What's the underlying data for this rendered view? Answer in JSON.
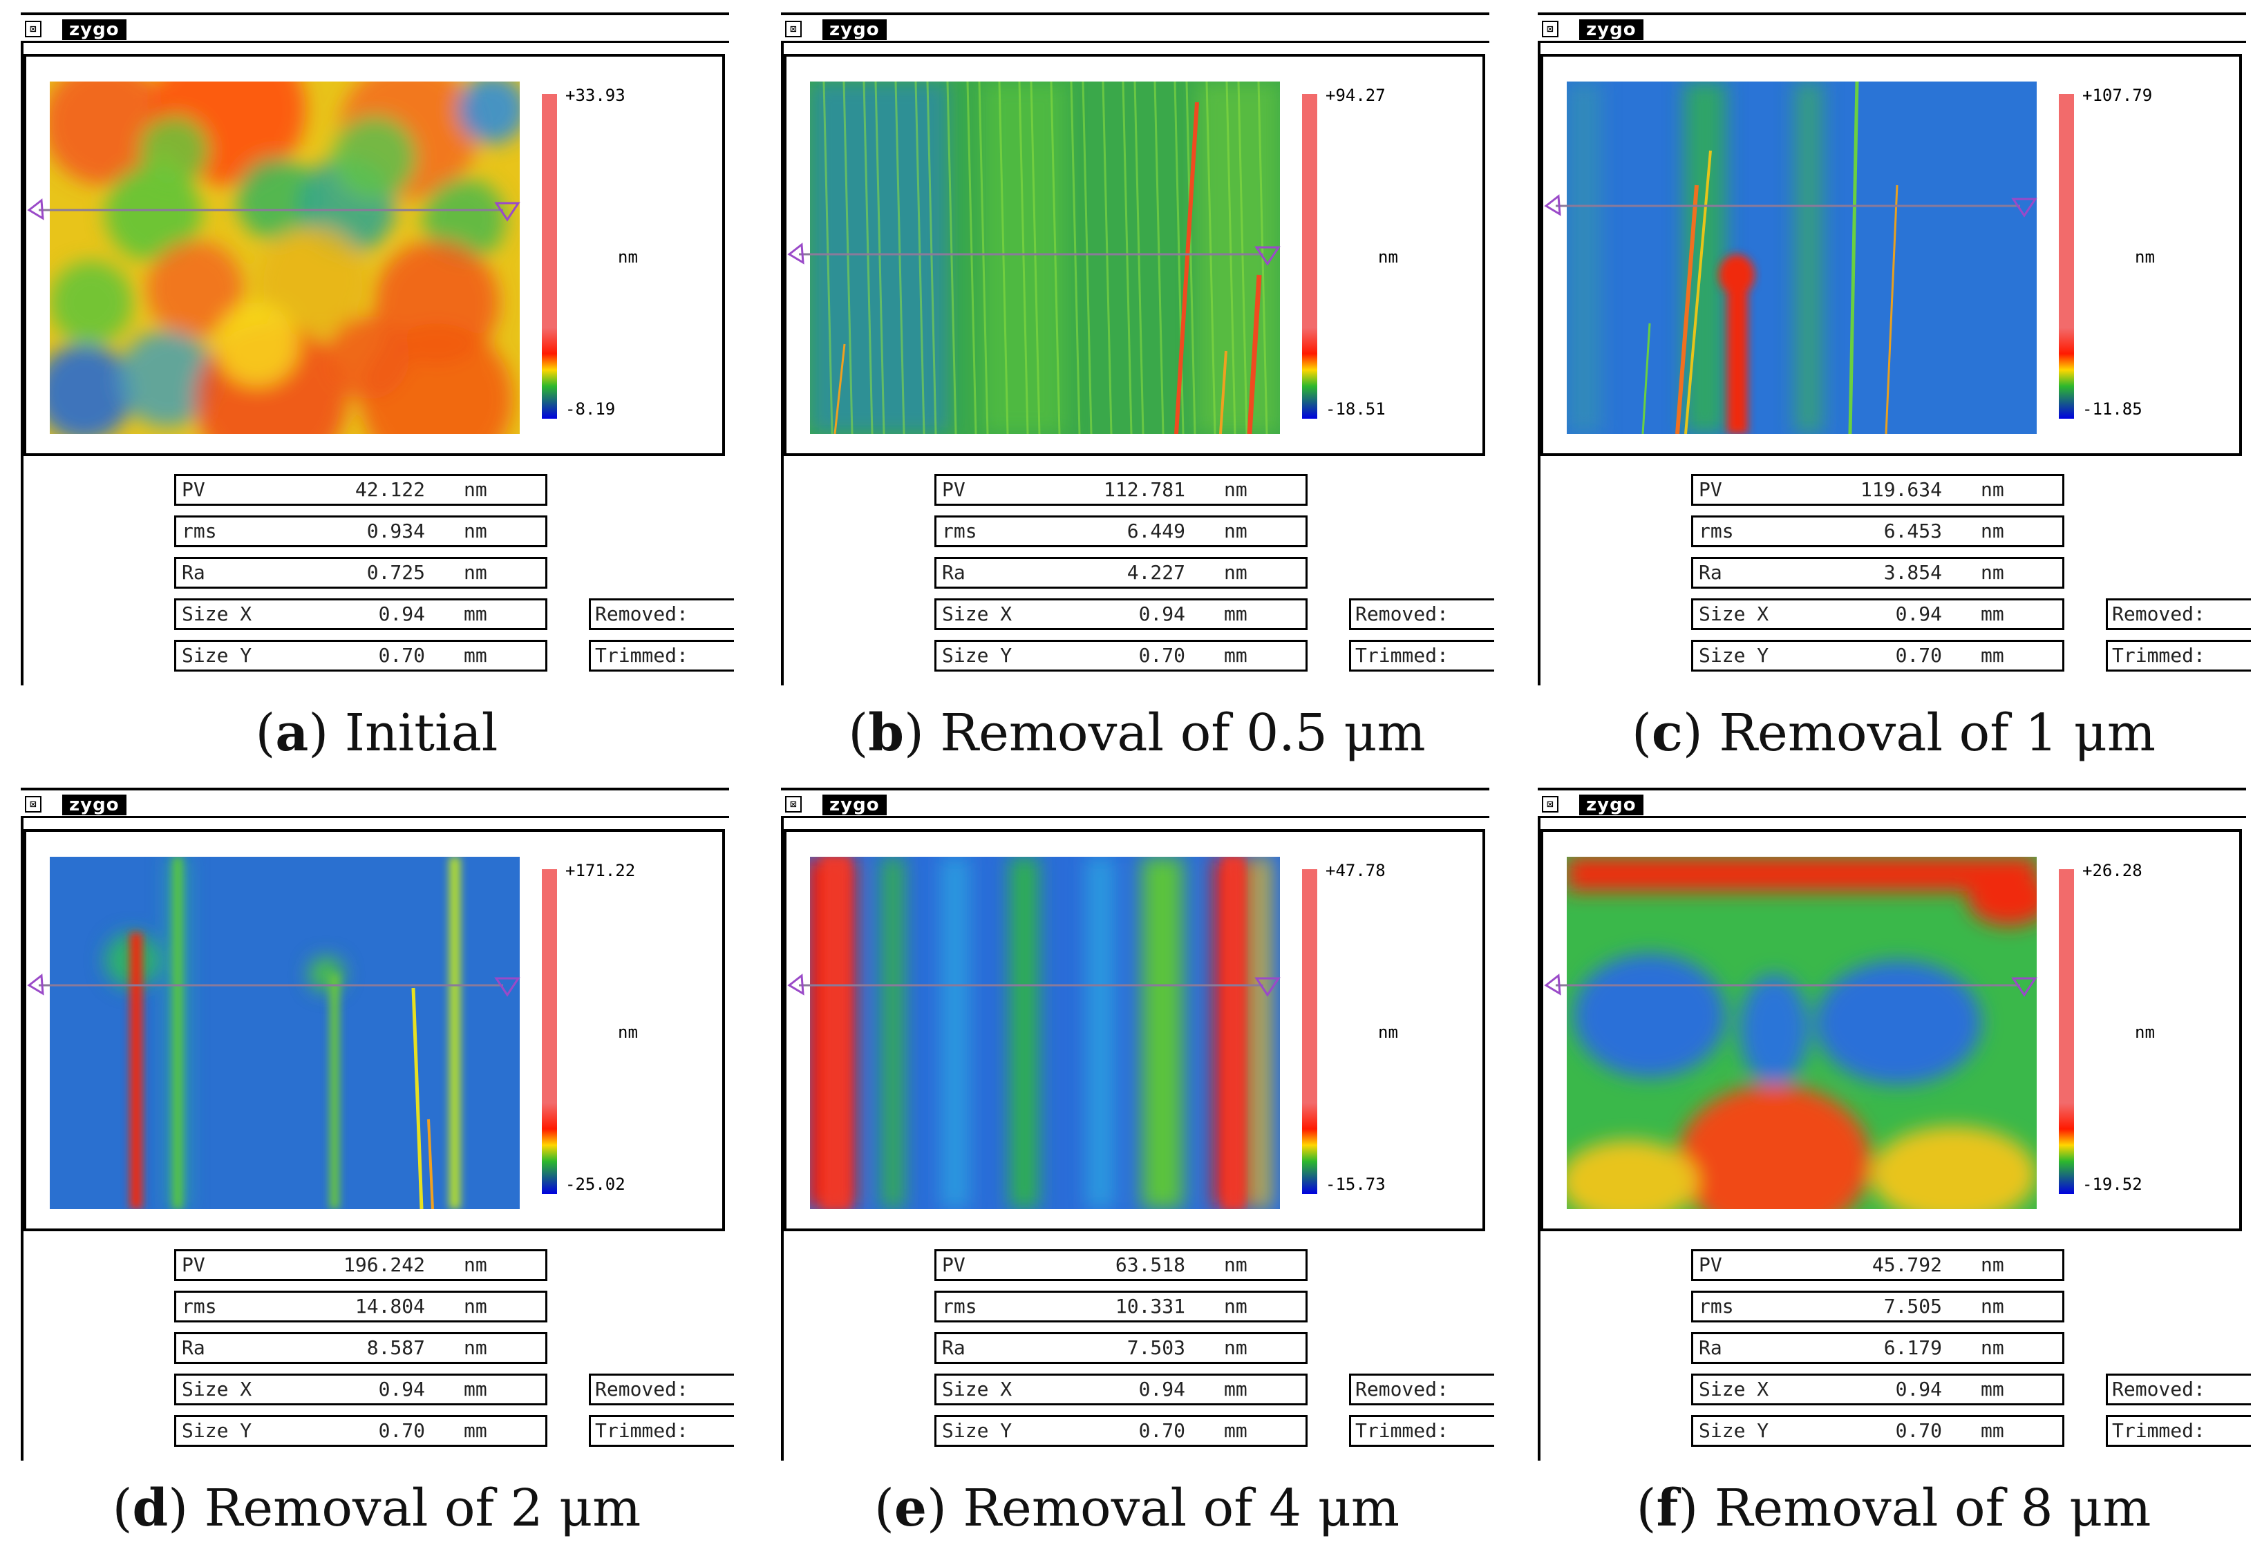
{
  "panels": [
    {
      "logo": "zygo",
      "scale_max": "+33.93",
      "scale_min": "-8.19",
      "unit": "nm",
      "stats": [
        {
          "label": "PV",
          "value": "42.122",
          "unit": "nm"
        },
        {
          "label": "rms",
          "value": "0.934",
          "unit": "nm"
        },
        {
          "label": "Ra",
          "value": "0.725",
          "unit": "nm"
        },
        {
          "label": "Size X",
          "value": "0.94",
          "unit": "mm"
        },
        {
          "label": "Size Y",
          "value": "0.70",
          "unit": "mm"
        }
      ],
      "removed_label": "Removed:",
      "trimmed_label": "Trimmed:",
      "caption_letter": "a",
      "caption_text": " Initial",
      "pattern": "mottled"
    },
    {
      "logo": "zygo",
      "scale_max": "+94.27",
      "scale_min": "-18.51",
      "unit": "nm",
      "stats": [
        {
          "label": "PV",
          "value": "112.781",
          "unit": "nm"
        },
        {
          "label": "rms",
          "value": "6.449",
          "unit": "nm"
        },
        {
          "label": "Ra",
          "value": "4.227",
          "unit": "nm"
        },
        {
          "label": "Size X",
          "value": "0.94",
          "unit": "mm"
        },
        {
          "label": "Size Y",
          "value": "0.70",
          "unit": "mm"
        }
      ],
      "removed_label": "Removed:",
      "trimmed_label": "Trimmed:",
      "caption_letter": "b",
      "caption_text": " Removal of 0.5 μm",
      "pattern": "fine-scratches"
    },
    {
      "logo": "zygo",
      "scale_max": "+107.79",
      "scale_min": "-11.85",
      "unit": "nm",
      "stats": [
        {
          "label": "PV",
          "value": "119.634",
          "unit": "nm"
        },
        {
          "label": "rms",
          "value": "6.453",
          "unit": "nm"
        },
        {
          "label": "Ra",
          "value": "3.854",
          "unit": "nm"
        },
        {
          "label": "Size X",
          "value": "0.94",
          "unit": "mm"
        },
        {
          "label": "Size Y",
          "value": "0.70",
          "unit": "mm"
        }
      ],
      "removed_label": "Removed:",
      "trimmed_label": "Trimmed:",
      "caption_letter": "c",
      "caption_text": " Removal of 1 μm",
      "pattern": "scratches"
    },
    {
      "logo": "zygo",
      "scale_max": "+171.22",
      "scale_min": "-25.02",
      "unit": "nm",
      "stats": [
        {
          "label": "PV",
          "value": "196.242",
          "unit": "nm"
        },
        {
          "label": "rms",
          "value": "14.804",
          "unit": "nm"
        },
        {
          "label": "Ra",
          "value": "8.587",
          "unit": "nm"
        },
        {
          "label": "Size X",
          "value": "0.94",
          "unit": "mm"
        },
        {
          "label": "Size Y",
          "value": "0.70",
          "unit": "mm"
        }
      ],
      "removed_label": "Removed:",
      "trimmed_label": "Trimmed:",
      "caption_letter": "d",
      "caption_text": " Removal of 2 μm",
      "pattern": "sparse-scratches"
    },
    {
      "logo": "zygo",
      "scale_max": "+47.78",
      "scale_min": "-15.73",
      "unit": "nm",
      "stats": [
        {
          "label": "PV",
          "value": "63.518",
          "unit": "nm"
        },
        {
          "label": "rms",
          "value": "10.331",
          "unit": "nm"
        },
        {
          "label": "Ra",
          "value": "7.503",
          "unit": "nm"
        },
        {
          "label": "Size X",
          "value": "0.94",
          "unit": "mm"
        },
        {
          "label": "Size Y",
          "value": "0.70",
          "unit": "mm"
        }
      ],
      "removed_label": "Removed:",
      "trimmed_label": "Trimmed:",
      "caption_letter": "e",
      "caption_text": " Removal of 4 μm",
      "pattern": "bands"
    },
    {
      "logo": "zygo",
      "scale_max": "+26.28",
      "scale_min": "-19.52",
      "unit": "nm",
      "stats": [
        {
          "label": "PV",
          "value": "45.792",
          "unit": "nm"
        },
        {
          "label": "rms",
          "value": "7.505",
          "unit": "nm"
        },
        {
          "label": "Ra",
          "value": "6.179",
          "unit": "nm"
        },
        {
          "label": "Size X",
          "value": "0.94",
          "unit": "mm"
        },
        {
          "label": "Size Y",
          "value": "0.70",
          "unit": "mm"
        }
      ],
      "removed_label": "Removed:",
      "trimmed_label": "Trimmed:",
      "caption_letter": "f",
      "caption_text": " Removal of 8 μm",
      "pattern": "waves"
    }
  ]
}
